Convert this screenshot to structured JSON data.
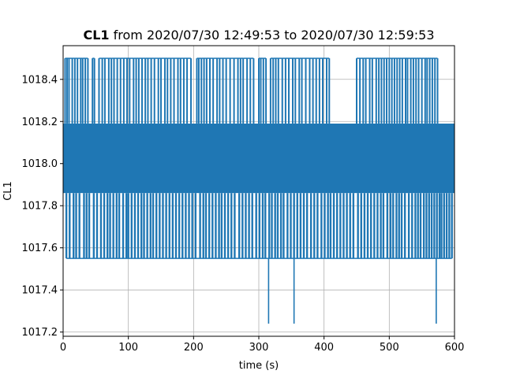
{
  "chart_data": {
    "type": "line",
    "title": {
      "bold": "CL1",
      "rest": " from 2020/07/30 12:49:53 to 2020/07/30 12:59:53"
    },
    "xlabel": "time (s)",
    "ylabel": "CL1",
    "xlim": [
      0,
      600
    ],
    "ylim": [
      1017.18,
      1018.56
    ],
    "xticks": [
      0,
      100,
      200,
      300,
      400,
      500,
      600
    ],
    "yticks": [
      1017.2,
      1017.4,
      1017.6,
      1017.8,
      1018.0,
      1018.2,
      1018.4
    ],
    "ytick_labels": [
      "1017.2",
      "1017.4",
      "1017.6",
      "1017.8",
      "1018.0",
      "1018.2",
      "1018.4"
    ],
    "grid": true,
    "series": [
      {
        "color": "#1f77b4",
        "baseline_band": [
          1017.86,
          1018.19
        ],
        "levels": {
          "high_spike": 1018.5,
          "band_top": 1018.19,
          "band_bottom": 1017.86,
          "mid_dip": 1017.55,
          "deep_dip": 1017.24
        },
        "high_spike_times": [
          3,
          6,
          9,
          14,
          18,
          22,
          27,
          30,
          34,
          38,
          45,
          48,
          55,
          60,
          64,
          70,
          74,
          78,
          83,
          88,
          93,
          98,
          102,
          108,
          112,
          116,
          121,
          126,
          130,
          135,
          140,
          146,
          150,
          156,
          160,
          165,
          170,
          176,
          180,
          185,
          190,
          196,
          205,
          208,
          212,
          216,
          220,
          225,
          230,
          236,
          240,
          245,
          250,
          256,
          262,
          268,
          272,
          276,
          282,
          287,
          292,
          300,
          303,
          307,
          311,
          318,
          322,
          326,
          330,
          336,
          341,
          346,
          352,
          356,
          362,
          366,
          372,
          378,
          383,
          388,
          393,
          398,
          404,
          408,
          450,
          455,
          460,
          464,
          470,
          474,
          480,
          484,
          488,
          492,
          496,
          500,
          504,
          508,
          512,
          516,
          520,
          525,
          528,
          533,
          537,
          541,
          545,
          550,
          555,
          558,
          562,
          566,
          570,
          574
        ],
        "mid_dip_times": [
          5,
          10,
          16,
          20,
          25,
          32,
          36,
          40,
          47,
          52,
          58,
          63,
          68,
          72,
          77,
          82,
          86,
          92,
          97,
          100,
          105,
          110,
          115,
          120,
          124,
          129,
          134,
          138,
          143,
          148,
          153,
          158,
          163,
          168,
          173,
          178,
          183,
          188,
          193,
          198,
          203,
          210,
          215,
          219,
          224,
          229,
          234,
          239,
          243,
          248,
          253,
          258,
          263,
          270,
          275,
          280,
          285,
          290,
          296,
          301,
          306,
          310,
          316,
          320,
          325,
          329,
          334,
          338,
          344,
          349,
          354,
          359,
          364,
          369,
          374,
          380,
          385,
          390,
          396,
          401,
          406,
          410,
          415,
          420,
          425,
          430,
          435,
          440,
          445,
          452,
          457,
          462,
          467,
          472,
          477,
          482,
          487,
          491,
          497,
          502,
          506,
          511,
          515,
          519,
          524,
          530,
          535,
          540,
          544,
          548,
          553,
          557,
          561,
          565,
          569,
          573,
          577,
          580,
          584,
          588,
          592,
          596
        ],
        "deep_dip_times": [
          315,
          354,
          572
        ]
      }
    ]
  }
}
